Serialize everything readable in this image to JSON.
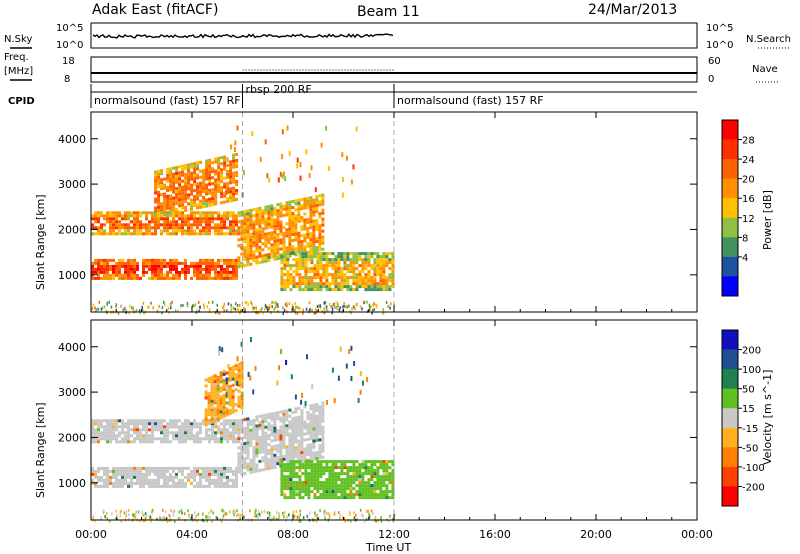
{
  "header": {
    "station": "Adak East (fitACF)",
    "beam": "Beam 11",
    "date": "24/Mar/2013"
  },
  "summary": {
    "nsky_label": "N.Sky",
    "nsearch_label": "N.Search",
    "freq_label_1": "Freq.",
    "freq_label_2": "[MHz]",
    "nave_label": "Nave",
    "cpid_label": "CPID",
    "nsky_ticks": [
      "10^5",
      "10^0"
    ],
    "nsearch_ticks": [
      "10^5",
      "10^0"
    ],
    "freq_ticks": [
      "18",
      "8"
    ],
    "nave_ticks": [
      "60",
      "0"
    ]
  },
  "cpid": {
    "segments": [
      {
        "start": 0,
        "end": 6.0,
        "label": "normalsound (fast) 157 RF"
      },
      {
        "start": 6.0,
        "end": 12.0,
        "label": "rbsp 200 RF"
      },
      {
        "start": 12.0,
        "end": 24.0,
        "label": "normalsound (fast) 157 RF"
      }
    ]
  },
  "xaxis": {
    "label": "Time UT",
    "ticks": [
      "00:00",
      "04:00",
      "08:00",
      "12:00",
      "16:00",
      "20:00",
      "00:00"
    ],
    "range_hours": [
      0,
      24
    ]
  },
  "yaxis": {
    "label": "Slant Range [km]",
    "ticks": [
      "1000",
      "2000",
      "3000",
      "4000"
    ],
    "range_km": [
      180,
      4590
    ]
  },
  "colorbars": {
    "power": {
      "label": "Power [dB]",
      "ticks": [
        "28",
        "24",
        "20",
        "16",
        "12",
        "8",
        "4"
      ],
      "colors": [
        "#ff0000",
        "#ff3000",
        "#ff6000",
        "#ff9000",
        "#ffc000",
        "#90c040",
        "#409060",
        "#2050a0",
        "#0000ff"
      ]
    },
    "velocity": {
      "label": "Velocity [m s^-1]",
      "ticks": [
        "200",
        "100",
        "50",
        "15",
        "-15",
        "-50",
        "-100",
        "-200"
      ],
      "colors": [
        "#1010c0",
        "#205090",
        "#208050",
        "#60c020",
        "#c8c8c8",
        "#ffb020",
        "#ff8000",
        "#ff4000",
        "#ff0000"
      ]
    }
  },
  "chart_data": {
    "type": "heatmap",
    "title": "Adak East (fitACF) Beam 11 24/Mar/2013",
    "xlabel": "Time UT",
    "ylabel": "Slant Range [km]",
    "xlim": [
      0,
      24
    ],
    "ylim": [
      180,
      4590
    ],
    "series": [
      {
        "name": "Power [dB]",
        "bands": [
          {
            "t0": 0.0,
            "t1": 5.8,
            "r0": 900,
            "r1": 1350,
            "level": 28
          },
          {
            "t0": 0.0,
            "t1": 5.8,
            "r0": 1900,
            "r1": 2400,
            "level": 24
          },
          {
            "t0": 2.5,
            "t1": 5.8,
            "r0": 2300,
            "r1": 3300,
            "level": 22
          },
          {
            "t0": 5.8,
            "t1": 9.2,
            "r0": 1200,
            "r1": 2400,
            "level": 20
          },
          {
            "t0": 7.5,
            "t1": 12.0,
            "r0": 700,
            "r1": 1500,
            "level": 18
          }
        ]
      },
      {
        "name": "Velocity [m s^-1]",
        "bands": [
          {
            "t0": 0.0,
            "t1": 5.8,
            "r0": 900,
            "r1": 1350,
            "level": 0
          },
          {
            "t0": 0.0,
            "t1": 5.8,
            "r0": 1900,
            "r1": 2400,
            "level": 0
          },
          {
            "t0": 4.5,
            "t1": 6.0,
            "r0": 2300,
            "r1": 3300,
            "level": -40
          },
          {
            "t0": 5.8,
            "t1": 9.2,
            "r0": 1200,
            "r1": 2400,
            "level": 0
          },
          {
            "t0": 7.5,
            "t1": 12.0,
            "r0": 700,
            "r1": 1500,
            "level": 30
          }
        ]
      }
    ]
  }
}
